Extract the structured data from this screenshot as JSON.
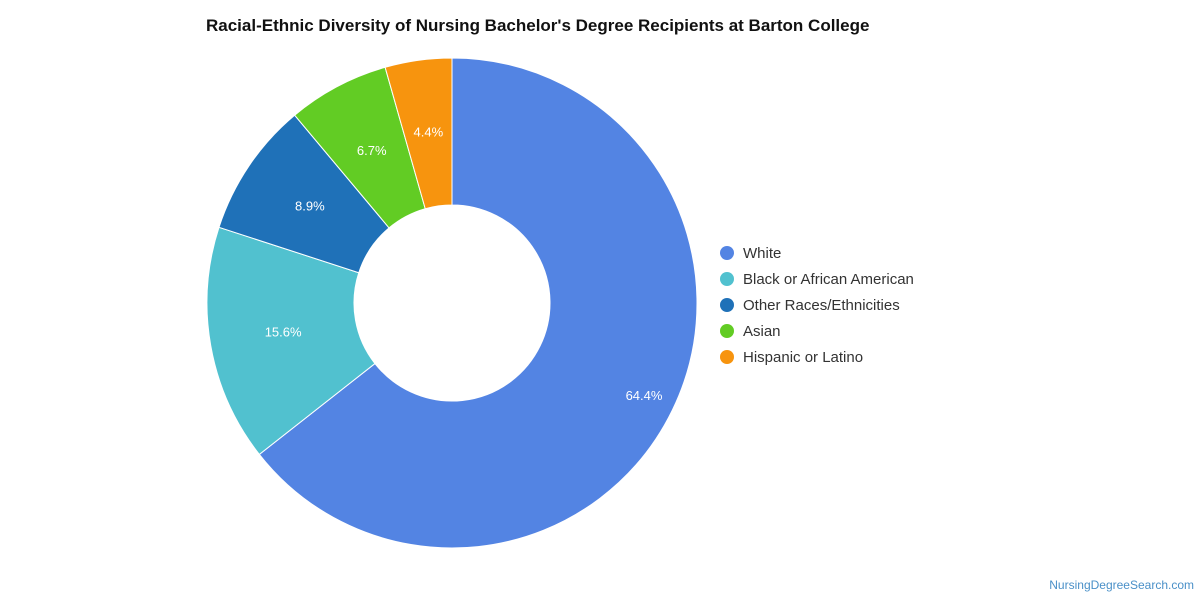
{
  "chart_data": {
    "type": "pie",
    "variant": "donut",
    "title": "Racial-Ethnic Diversity of Nursing Bachelor's Degree Recipients at Barton College",
    "legend_position": "right",
    "series": [
      {
        "name": "White",
        "value": 64.4,
        "label": "64.4%",
        "color": "#5384e3"
      },
      {
        "name": "Black or African American",
        "value": 15.6,
        "label": "15.6%",
        "color": "#51c1cf"
      },
      {
        "name": "Other Races/Ethnicities",
        "value": 8.9,
        "label": "8.9%",
        "color": "#1f71b8"
      },
      {
        "name": "Asian",
        "value": 6.7,
        "label": "6.7%",
        "color": "#62cc24"
      },
      {
        "name": "Hispanic or Latino",
        "value": 4.4,
        "label": "4.4%",
        "color": "#f7940e"
      }
    ]
  },
  "watermark": "NursingDegreeSearch.com"
}
